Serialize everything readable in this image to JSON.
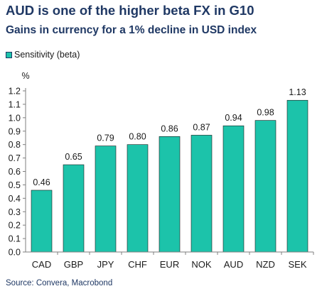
{
  "header": {
    "title": "AUD is one of the higher beta FX in G10",
    "subtitle": "Gains in currency for a 1% decline in USD index"
  },
  "footer": {
    "source": "Source: Convera, Macrobond"
  },
  "colors": {
    "bar": "#1cc3aa",
    "title": "#1f3864",
    "axis": "#7f7f7f"
  },
  "chart_data": {
    "type": "bar",
    "title": "AUD is one of the higher beta FX in G10",
    "subtitle": "Gains in currency for a 1% decline in USD index",
    "ylabel": "%",
    "xlabel": "",
    "categories": [
      "CAD",
      "GBP",
      "JPY",
      "CHF",
      "EUR",
      "NOK",
      "AUD",
      "NZD",
      "SEK"
    ],
    "series": [
      {
        "name": "Sensitivity (beta)",
        "values": [
          0.46,
          0.65,
          0.79,
          0.8,
          0.86,
          0.87,
          0.94,
          0.98,
          1.13
        ],
        "labels": [
          "0.46",
          "0.65",
          "0.79",
          "0.80",
          "0.86",
          "0.87",
          "0.94",
          "0.98",
          "1.13"
        ]
      }
    ],
    "ylim": [
      0,
      1.2
    ],
    "yticks": [
      "0.0",
      "0.1",
      "0.2",
      "0.3",
      "0.4",
      "0.5",
      "0.6",
      "0.7",
      "0.8",
      "0.9",
      "1.0",
      "1.1",
      "1.2"
    ],
    "grid": false,
    "legend_position": "top-left",
    "data_labels": true
  }
}
